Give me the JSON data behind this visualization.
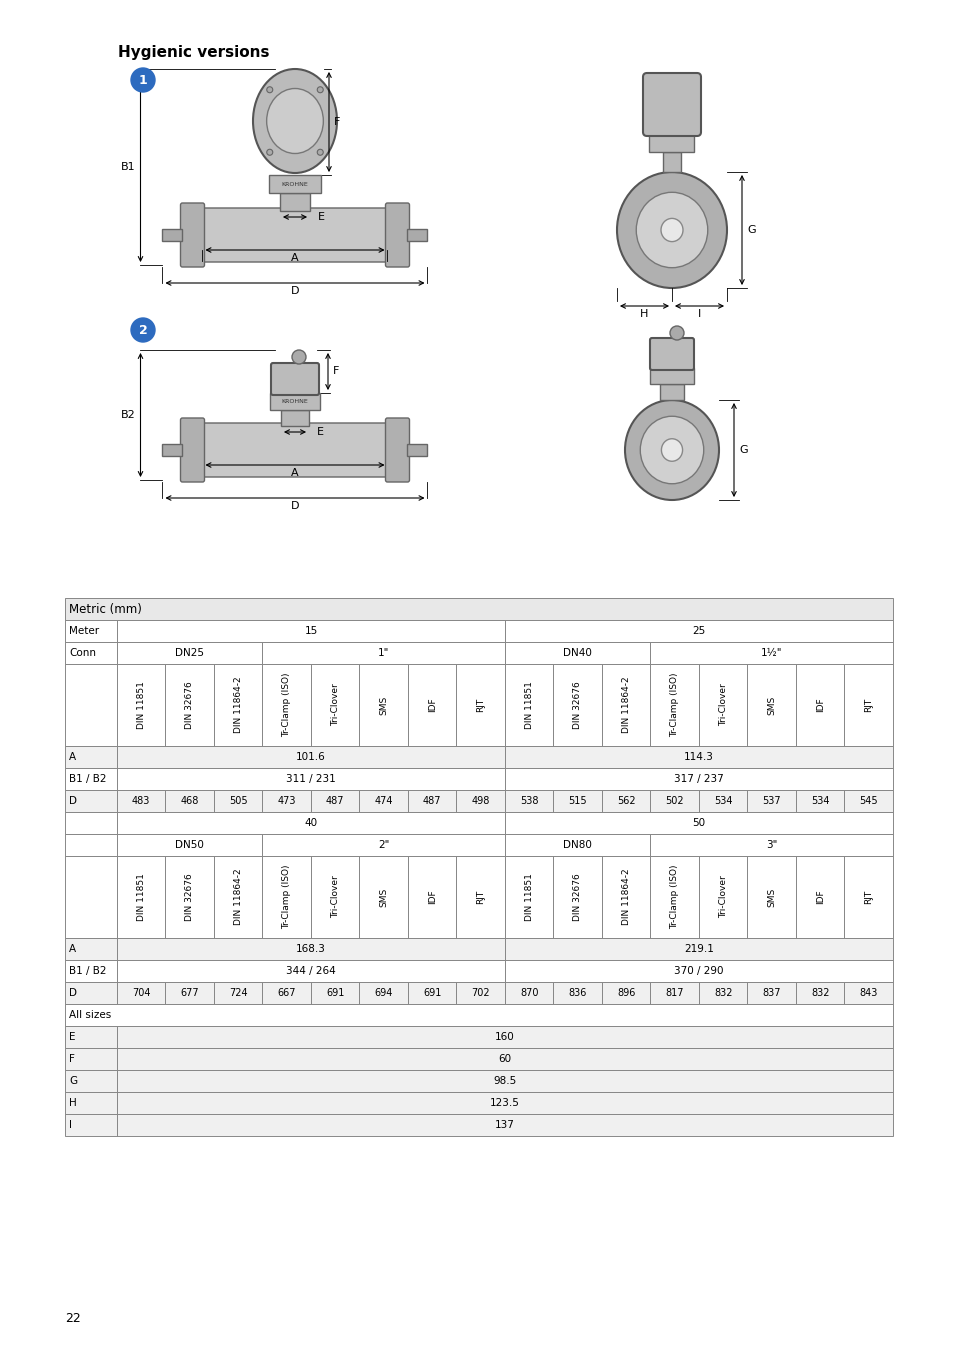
{
  "title": "Hygienic versions",
  "page_number": "22",
  "table_title": "Metric (mm)",
  "bg_color": "#ffffff",
  "line_color": "#888888",
  "circle_color": "#2d6bbf",
  "body_fill": "#c8c8c8",
  "endcap_fill": "#b0b0b0",
  "pipe_fill": "#aaaaaa",
  "neck_fill": "#b8b8b8",
  "head_fill": "#bbbbbb",
  "head_dark": "#999999",
  "header_bg": "#e8e8e8",
  "alt_bg": "#f0f0f0",
  "table_data": {
    "section1": {
      "col_headers": [
        "DIN 11851",
        "DIN 32676",
        "DIN 11864-2",
        "Tr-Clamp (ISO)",
        "Tri-Clover",
        "SMS",
        "IDF",
        "RJT",
        "DIN 11851",
        "DIN 32676",
        "DIN 11864-2",
        "Tr-Clamp (ISO)",
        "Tri-Clover",
        "SMS",
        "IDF",
        "RJT"
      ],
      "A_val_left": "101.6",
      "A_val_right": "114.3",
      "B_val_left": "311 / 231",
      "B_val_right": "317 / 237",
      "D_vals": [
        "483",
        "468",
        "505",
        "473",
        "487",
        "474",
        "487",
        "498",
        "538",
        "515",
        "562",
        "502",
        "534",
        "537",
        "534",
        "545"
      ],
      "size_left": "40",
      "size_right": "50",
      "conn_left1": "DN25",
      "conn_left2": "1\"",
      "conn_right1": "DN40",
      "conn_right2": "1½\""
    },
    "section2": {
      "col_headers": [
        "DIN 11851",
        "DIN 32676",
        "DIN 11864-2",
        "Tr-Clamp (ISO)",
        "Tri-Clover",
        "SMS",
        "IDF",
        "RJT",
        "DIN 11851",
        "DIN 32676",
        "DIN 11864-2",
        "Tr-Clamp (ISO)",
        "Tri-Clover",
        "SMS",
        "IDF",
        "RJT"
      ],
      "A_val_left": "168.3",
      "A_val_right": "219.1",
      "B_val_left": "344 / 264",
      "B_val_right": "370 / 290",
      "D_vals": [
        "704",
        "677",
        "724",
        "667",
        "691",
        "694",
        "691",
        "702",
        "870",
        "836",
        "896",
        "817",
        "832",
        "837",
        "832",
        "843"
      ],
      "conn_left1": "DN50",
      "conn_left2": "2\"",
      "conn_right1": "DN80",
      "conn_right2": "3\""
    },
    "all_sizes": {
      "rows": [
        {
          "label": "E",
          "value": "160"
        },
        {
          "label": "F",
          "value": "60"
        },
        {
          "label": "G",
          "value": "98.5"
        },
        {
          "label": "H",
          "value": "123.5"
        },
        {
          "label": "I",
          "value": "137"
        }
      ]
    }
  }
}
